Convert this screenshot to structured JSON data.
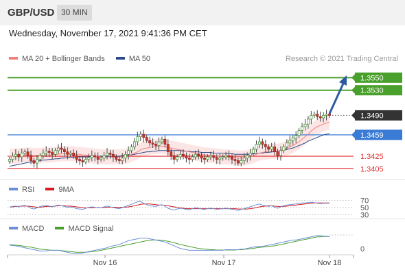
{
  "header": {
    "pair": "GBP/USD",
    "timeframe": "30 MIN"
  },
  "date_line": "Wednesday, November 17, 2021 9:41:36 PM CET",
  "credit": "Research © 2021 Trading Central",
  "legend": {
    "ma20": {
      "label": "MA 20 + Bollinger Bands",
      "color": "#f08080"
    },
    "ma50": {
      "label": "MA 50",
      "color": "#2c4a8a"
    },
    "rsi": {
      "label": "RSI",
      "color": "#6a8fd8"
    },
    "ma9": {
      "label": "9MA",
      "color": "#d41a1a"
    },
    "macd": {
      "label": "MACD",
      "color": "#6a8fd8"
    },
    "macd_signal": {
      "label": "MACD Signal",
      "color": "#4aa02c"
    }
  },
  "chart_data": {
    "type": "candlestick",
    "price_ylim": [
      1.3388,
      1.357
    ],
    "x_labels": [
      "Nov 16",
      "Nov 17",
      "Nov 18"
    ],
    "levels": [
      {
        "value": 1.355,
        "label": "1.3550",
        "kind": "resistance",
        "color": "#4aa02c"
      },
      {
        "value": 1.353,
        "label": "1.3530",
        "kind": "resistance",
        "color": "#4aa02c"
      },
      {
        "value": 1.349,
        "label": "1.3490",
        "kind": "last-price",
        "color": "#333333"
      },
      {
        "value": 1.3459,
        "label": "1.3459",
        "kind": "pivot",
        "color": "#3a7bd5"
      },
      {
        "value": 1.3425,
        "label": "1.3425",
        "kind": "support",
        "color": "#e03030"
      },
      {
        "value": 1.3405,
        "label": "1.3405",
        "kind": "support",
        "color": "#e03030"
      }
    ],
    "rsi_levels": [
      {
        "value": 70,
        "label": "70"
      },
      {
        "value": 50,
        "label": "50"
      },
      {
        "value": 30,
        "label": "30"
      }
    ],
    "macd_levels": [
      {
        "value": 0,
        "label": "0"
      }
    ],
    "closes": [
      1.342,
      1.3425,
      1.3428,
      1.3424,
      1.343,
      1.3432,
      1.3426,
      1.3418,
      1.3414,
      1.342,
      1.3426,
      1.343,
      1.3433,
      1.3431,
      1.3428,
      1.3434,
      1.3438,
      1.3436,
      1.3432,
      1.3428,
      1.343,
      1.3426,
      1.342,
      1.3418,
      1.3416,
      1.342,
      1.3423,
      1.3426,
      1.3424,
      1.342,
      1.3422,
      1.3426,
      1.343,
      1.3428,
      1.3424,
      1.342,
      1.3418,
      1.3422,
      1.3428,
      1.3434,
      1.344,
      1.3448,
      1.3456,
      1.346,
      1.3455,
      1.345,
      1.3446,
      1.3444,
      1.3442,
      1.3448,
      1.3452,
      1.3444,
      1.3432,
      1.3426,
      1.342,
      1.3424,
      1.3428,
      1.3426,
      1.3422,
      1.342,
      1.3424,
      1.3428,
      1.3426,
      1.3422,
      1.342,
      1.3424,
      1.3426,
      1.3423,
      1.342,
      1.3422,
      1.3424,
      1.3426,
      1.3424,
      1.342,
      1.3418,
      1.3414,
      1.3418,
      1.3422,
      1.3426,
      1.343,
      1.3436,
      1.3444,
      1.3448,
      1.3444,
      1.344,
      1.3436,
      1.344,
      1.3432,
      1.3426,
      1.3434,
      1.344,
      1.3446,
      1.345,
      1.3454,
      1.3458,
      1.3466,
      1.3472,
      1.3476,
      1.3484,
      1.349,
      1.3492,
      1.3488,
      1.3486,
      1.349,
      1.3492,
      1.349
    ],
    "ma20": [
      1.3425,
      1.3425,
      1.3425,
      1.3426,
      1.3426,
      1.3427,
      1.3427,
      1.3427,
      1.3426,
      1.3426,
      1.3426,
      1.3427,
      1.3427,
      1.3427,
      1.3427,
      1.3428,
      1.3428,
      1.3429,
      1.3429,
      1.3429,
      1.3429,
      1.3429,
      1.3428,
      1.3428,
      1.3427,
      1.3427,
      1.3426,
      1.3426,
      1.3425,
      1.3425,
      1.3424,
      1.3424,
      1.3424,
      1.3424,
      1.3424,
      1.3424,
      1.3424,
      1.3424,
      1.3425,
      1.3426,
      1.3428,
      1.343,
      1.3432,
      1.3435,
      1.3437,
      1.3438,
      1.3439,
      1.344,
      1.344,
      1.3441,
      1.3441,
      1.344,
      1.3439,
      1.3438,
      1.3437,
      1.3436,
      1.3435,
      1.3434,
      1.3433,
      1.3432,
      1.3431,
      1.343,
      1.3429,
      1.3428,
      1.3427,
      1.3427,
      1.3426,
      1.3426,
      1.3425,
      1.3425,
      1.3424,
      1.3424,
      1.3424,
      1.3423,
      1.3423,
      1.3422,
      1.3422,
      1.3422,
      1.3423,
      1.3424,
      1.3426,
      1.3428,
      1.343,
      1.3431,
      1.3432,
      1.3432,
      1.3433,
      1.3433,
      1.3433,
      1.3434,
      1.3436,
      1.3438,
      1.344,
      1.3442,
      1.3445,
      1.3448,
      1.3452,
      1.3456,
      1.346,
      1.3465,
      1.3469,
      1.3472,
      1.3474,
      1.3476,
      1.3478,
      1.3479
    ],
    "ma50": [
      1.3409,
      1.341,
      1.3411,
      1.3412,
      1.3413,
      1.3414,
      1.3415,
      1.3416,
      1.3417,
      1.3417,
      1.3418,
      1.3419,
      1.3419,
      1.342,
      1.342,
      1.3421,
      1.3421,
      1.3422,
      1.3422,
      1.3423,
      1.3423,
      1.3423,
      1.3424,
      1.3424,
      1.3424,
      1.3424,
      1.3424,
      1.3425,
      1.3425,
      1.3425,
      1.3425,
      1.3425,
      1.3425,
      1.3425,
      1.3425,
      1.3425,
      1.3425,
      1.3426,
      1.3426,
      1.3427,
      1.3427,
      1.3428,
      1.3429,
      1.343,
      1.3431,
      1.3432,
      1.3432,
      1.3433,
      1.3433,
      1.3434,
      1.3434,
      1.3434,
      1.3434,
      1.3434,
      1.3434,
      1.3434,
      1.3434,
      1.3433,
      1.3433,
      1.3433,
      1.3432,
      1.3432,
      1.3432,
      1.3431,
      1.3431,
      1.3431,
      1.3431,
      1.343,
      1.343,
      1.343,
      1.343,
      1.3429,
      1.3429,
      1.3429,
      1.3428,
      1.3428,
      1.3428,
      1.3428,
      1.3428,
      1.3428,
      1.3429,
      1.3429,
      1.343,
      1.343,
      1.3431,
      1.3431,
      1.3432,
      1.3432,
      1.3433,
      1.3434,
      1.3435,
      1.3436,
      1.3437,
      1.3438,
      1.344,
      1.3442,
      1.3444,
      1.3446,
      1.3449,
      1.3451,
      1.3453,
      1.3455,
      1.3457,
      1.3459,
      1.346,
      1.3461
    ],
    "bb_width": 0.0012,
    "rsi": [
      52,
      53,
      54,
      52,
      55,
      56,
      53,
      48,
      46,
      49,
      53,
      55,
      56,
      54,
      52,
      55,
      57,
      55,
      53,
      51,
      52,
      50,
      47,
      46,
      45,
      48,
      50,
      52,
      51,
      49,
      50,
      52,
      54,
      52,
      50,
      48,
      47,
      50,
      53,
      56,
      59,
      63,
      66,
      67,
      62,
      58,
      55,
      54,
      53,
      56,
      58,
      54,
      48,
      45,
      43,
      46,
      48,
      47,
      45,
      44,
      47,
      49,
      48,
      46,
      45,
      47,
      48,
      47,
      45,
      46,
      47,
      48,
      47,
      45,
      44,
      42,
      45,
      47,
      50,
      52,
      55,
      58,
      60,
      57,
      55,
      53,
      55,
      51,
      48,
      52,
      55,
      57,
      58,
      59,
      60,
      62,
      63,
      63,
      64,
      65,
      64,
      62,
      61,
      62,
      62,
      62
    ],
    "rsi9": [
      52,
      52,
      53,
      53,
      54,
      54,
      54,
      53,
      52,
      51,
      51,
      52,
      53,
      53,
      53,
      54,
      55,
      55,
      55,
      54,
      54,
      53,
      52,
      51,
      50,
      49,
      49,
      49,
      50,
      50,
      50,
      50,
      51,
      51,
      51,
      51,
      51,
      51,
      51,
      52,
      53,
      55,
      57,
      59,
      60,
      60,
      60,
      59,
      58,
      57,
      57,
      56,
      55,
      53,
      52,
      50,
      49,
      48,
      47,
      47,
      47,
      47,
      47,
      47,
      47,
      47,
      47,
      47,
      47,
      47,
      47,
      47,
      47,
      47,
      47,
      46,
      46,
      46,
      46,
      47,
      48,
      50,
      52,
      53,
      54,
      55,
      55,
      54,
      53,
      53,
      53,
      54,
      55,
      56,
      57,
      58,
      59,
      60,
      61,
      62,
      63,
      63,
      63,
      63,
      63,
      63
    ],
    "macd": [
      -1,
      -1.5,
      -2,
      -3,
      -4,
      -5,
      -6,
      -7,
      -8,
      -9,
      -10,
      -10,
      -10,
      -9,
      -9,
      -9,
      -9,
      -10,
      -11,
      -12,
      -13,
      -14,
      -14,
      -14,
      -13,
      -12,
      -11,
      -10,
      -9,
      -8,
      -7,
      -6,
      -5,
      -3,
      -2,
      -1,
      0,
      2,
      4,
      6,
      7,
      8,
      9,
      10,
      10,
      10,
      9,
      8,
      7,
      6,
      5,
      4,
      2,
      0,
      -2,
      -4,
      -6,
      -7,
      -8,
      -9,
      -9,
      -9,
      -9,
      -9,
      -9,
      -9,
      -9,
      -9,
      -9,
      -9,
      -9,
      -8,
      -8,
      -8,
      -8,
      -8,
      -7,
      -7,
      -6,
      -5,
      -4,
      -3,
      -3,
      -3,
      -2,
      -1,
      0,
      1,
      2,
      3,
      4,
      5,
      6,
      7,
      7,
      8,
      9,
      10,
      11,
      12,
      13,
      14,
      14,
      13,
      13,
      12
    ],
    "macd_signal": [
      0,
      -0.5,
      -1,
      -1.5,
      -2,
      -3,
      -3.5,
      -4,
      -5,
      -6,
      -7,
      -7.5,
      -8,
      -8.5,
      -9,
      -9,
      -9,
      -9.5,
      -10,
      -10.5,
      -11,
      -11.5,
      -12,
      -12,
      -12,
      -12,
      -11.5,
      -11,
      -10.5,
      -10,
      -9,
      -8,
      -7,
      -6,
      -5,
      -4,
      -3,
      -2,
      -1,
      0,
      1,
      2,
      3,
      4,
      5,
      6,
      6.5,
      7,
      7,
      7,
      6.5,
      6,
      5,
      4,
      3,
      1.5,
      0,
      -1,
      -2,
      -3,
      -4,
      -5,
      -6,
      -6.5,
      -7,
      -7.5,
      -8,
      -8,
      -8.5,
      -8.5,
      -8.5,
      -8.5,
      -8.5,
      -8.5,
      -8.5,
      -8,
      -8,
      -7.5,
      -7,
      -6.5,
      -6,
      -5,
      -4.5,
      -4,
      -3.5,
      -3,
      -2.5,
      -2,
      -1,
      0,
      1,
      2,
      3,
      4,
      5,
      6,
      7,
      8,
      9,
      10,
      11,
      12,
      12,
      12.5,
      12.5,
      12.5
    ]
  }
}
